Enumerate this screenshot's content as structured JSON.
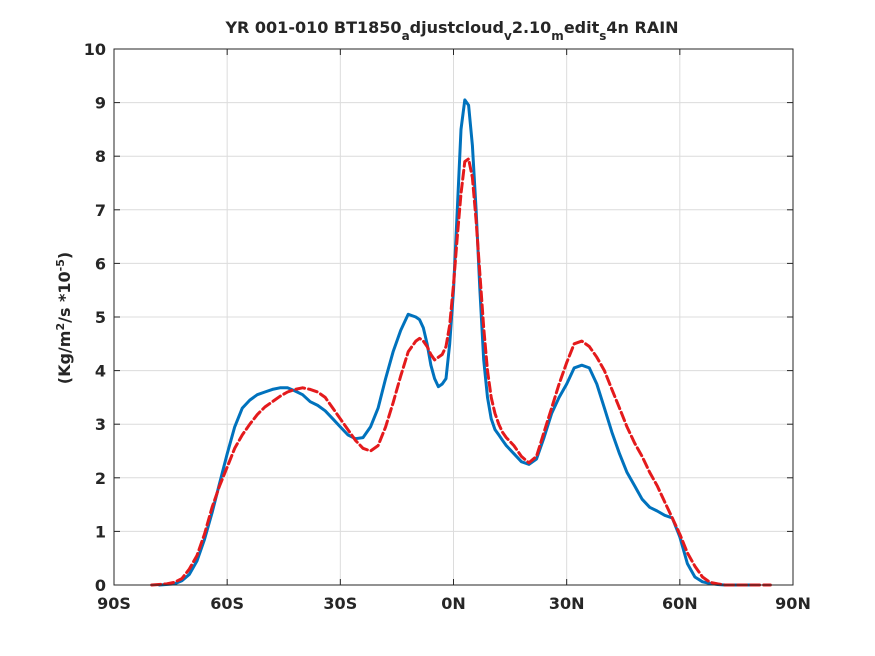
{
  "chart_data": {
    "type": "line",
    "title_main": "YR 001-010 BT1850",
    "title_sub_a": "a",
    "title_part2": "djustcloud",
    "title_sub_v": "v",
    "title_part3": "2.10",
    "title_sub_m": "m",
    "title_part4": "edit",
    "title_sub_s": "s",
    "title_part5": "4n RAIN",
    "ylabel_part1": "(Kg/m",
    "ylabel_sup1": "2",
    "ylabel_part2": "/s   *10",
    "ylabel_sup2": "-5",
    "ylabel_part3": ")",
    "xlim": [
      -90,
      90
    ],
    "ylim": [
      0,
      10
    ],
    "xticks": [
      -90,
      -60,
      -30,
      0,
      30,
      60,
      90
    ],
    "xtick_labels": [
      "90S",
      "60S",
      "30S",
      "0N",
      "30N",
      "60N",
      "90N"
    ],
    "yticks": [
      0,
      1,
      2,
      3,
      4,
      5,
      6,
      7,
      8,
      9,
      10
    ],
    "ytick_labels": [
      "0",
      "1",
      "2",
      "3",
      "4",
      "5",
      "6",
      "7",
      "8",
      "9",
      "10"
    ],
    "grid": true,
    "series": [
      {
        "color": "#0072BD",
        "style": "solid",
        "x": [
          -78,
          -74,
          -72,
          -70,
          -68,
          -66,
          -64,
          -62,
          -60,
          -58,
          -56,
          -54,
          -52,
          -50,
          -48,
          -46,
          -44,
          -42,
          -40,
          -38,
          -36,
          -34,
          -32,
          -30,
          -28,
          -26,
          -24,
          -22,
          -20,
          -18,
          -16,
          -14,
          -12,
          -10,
          -9,
          -8,
          -7,
          -6,
          -5,
          -4,
          -3,
          -2,
          -1,
          0,
          1,
          2,
          3,
          4,
          5,
          6,
          7,
          8,
          9,
          10,
          11,
          12,
          13,
          14,
          16,
          18,
          20,
          22,
          24,
          26,
          28,
          30,
          32,
          34,
          36,
          38,
          40,
          42,
          44,
          46,
          48,
          50,
          52,
          54,
          56,
          58,
          60,
          62,
          64,
          66,
          68,
          70,
          72,
          74,
          76,
          78,
          80
        ],
        "y": [
          0.0,
          0.02,
          0.08,
          0.2,
          0.45,
          0.85,
          1.35,
          1.9,
          2.45,
          2.95,
          3.3,
          3.45,
          3.55,
          3.6,
          3.65,
          3.68,
          3.68,
          3.62,
          3.55,
          3.42,
          3.35,
          3.25,
          3.1,
          2.95,
          2.8,
          2.73,
          2.75,
          2.95,
          3.3,
          3.85,
          4.35,
          4.75,
          5.05,
          5.0,
          4.95,
          4.8,
          4.5,
          4.1,
          3.85,
          3.7,
          3.75,
          3.85,
          4.5,
          5.5,
          7.0,
          8.5,
          9.05,
          8.95,
          8.2,
          7.0,
          5.5,
          4.2,
          3.5,
          3.1,
          2.9,
          2.8,
          2.7,
          2.6,
          2.45,
          2.3,
          2.25,
          2.35,
          2.75,
          3.2,
          3.5,
          3.75,
          4.05,
          4.1,
          4.05,
          3.75,
          3.3,
          2.85,
          2.45,
          2.1,
          1.85,
          1.6,
          1.45,
          1.38,
          1.3,
          1.25,
          0.9,
          0.4,
          0.15,
          0.06,
          0.03,
          0.01,
          0.0,
          0.0,
          0.0,
          0.0,
          0.0
        ]
      },
      {
        "color": "#E41A1C",
        "style": "dashed",
        "x": [
          -80,
          -76,
          -74,
          -72,
          -70,
          -68,
          -66,
          -64,
          -62,
          -60,
          -58,
          -56,
          -54,
          -52,
          -50,
          -48,
          -46,
          -44,
          -42,
          -40,
          -38,
          -36,
          -34,
          -32,
          -30,
          -28,
          -26,
          -24,
          -22,
          -20,
          -18,
          -16,
          -14,
          -12,
          -10,
          -9,
          -8,
          -7,
          -6,
          -5,
          -4,
          -3,
          -2,
          -1,
          0,
          1,
          2,
          3,
          4,
          5,
          6,
          7,
          8,
          9,
          10,
          11,
          12,
          13,
          14,
          16,
          18,
          20,
          22,
          24,
          26,
          28,
          30,
          32,
          34,
          36,
          38,
          40,
          42,
          44,
          46,
          48,
          50,
          52,
          54,
          56,
          58,
          60,
          62,
          64,
          66,
          68,
          70,
          72,
          74,
          76,
          78,
          80,
          82,
          84
        ],
        "y": [
          0.0,
          0.02,
          0.05,
          0.12,
          0.3,
          0.55,
          0.95,
          1.45,
          1.85,
          2.2,
          2.55,
          2.8,
          3.0,
          3.18,
          3.32,
          3.42,
          3.52,
          3.6,
          3.65,
          3.68,
          3.65,
          3.6,
          3.5,
          3.3,
          3.1,
          2.9,
          2.7,
          2.55,
          2.5,
          2.6,
          2.95,
          3.4,
          3.9,
          4.35,
          4.55,
          4.6,
          4.55,
          4.45,
          4.3,
          4.2,
          4.25,
          4.3,
          4.45,
          4.85,
          5.6,
          6.5,
          7.3,
          7.9,
          7.95,
          7.6,
          6.8,
          5.8,
          4.8,
          4.0,
          3.5,
          3.2,
          3.0,
          2.85,
          2.75,
          2.6,
          2.4,
          2.28,
          2.4,
          2.85,
          3.3,
          3.75,
          4.15,
          4.5,
          4.55,
          4.45,
          4.25,
          4.0,
          3.65,
          3.3,
          2.95,
          2.65,
          2.4,
          2.1,
          1.85,
          1.55,
          1.25,
          0.95,
          0.6,
          0.35,
          0.15,
          0.05,
          0.02,
          0.0,
          0.0,
          0.0,
          0.0,
          0.0,
          0.0,
          0.0
        ]
      }
    ]
  }
}
